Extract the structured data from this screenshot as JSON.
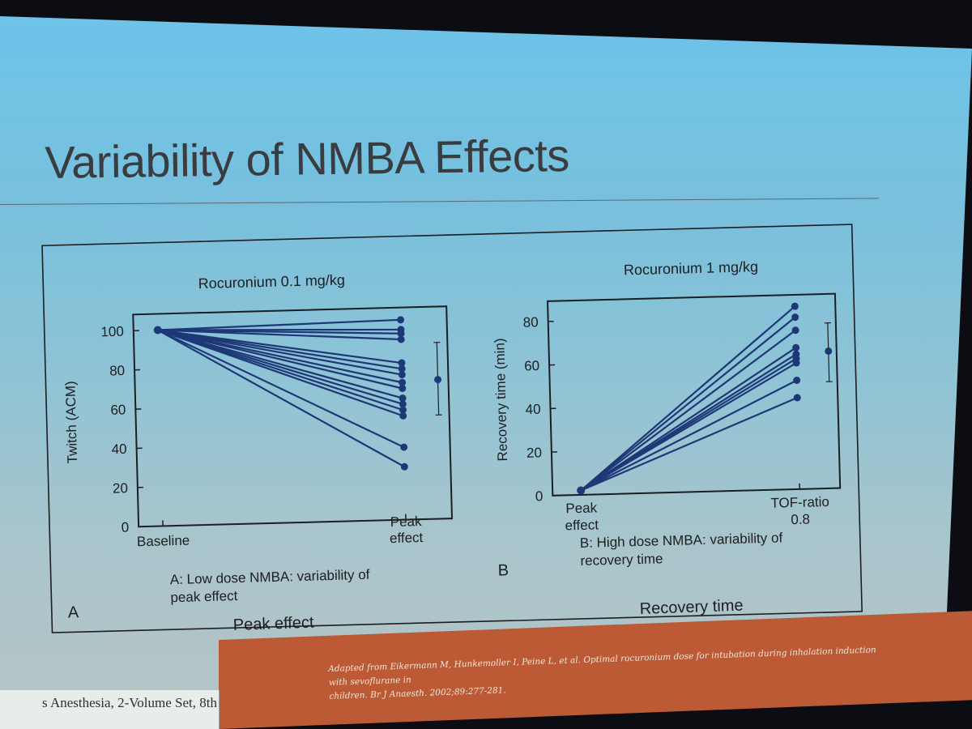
{
  "slide": {
    "title": "Variability of NMBA Effects",
    "caption_left": "Peak effect",
    "caption_right": "Recovery time",
    "footer_book": "s Anesthesia, 2-Volume Set, 8th",
    "footer_ref_line1": "Adapted from Eikermann M, Hunkemoller I,   Peine L, et al. Optimal rocuronium dose for intubation during inhalation induction with sevoflurane in",
    "footer_ref_line2": "children.  Br J Anaesth.   2002;89:277-281.",
    "colors": {
      "series": "#1e3877",
      "frame": "#1c1e22",
      "footer": "#bb5a34"
    }
  },
  "chart_data": [
    {
      "type": "line",
      "panel": "A",
      "title": "Rocuronium 0.1 mg/kg",
      "ylabel": "Twitch (ACM)",
      "ylim": [
        0,
        105
      ],
      "yticks": [
        "0",
        "20",
        "40",
        "60",
        "80",
        "100"
      ],
      "categories": [
        "Baseline",
        "Peak effect"
      ],
      "xlabel_lines": [
        [
          "Baseline"
        ],
        [
          "Peak",
          "effect"
        ]
      ],
      "caption_lines": [
        "A: Low dose NMBA: variability of",
        "peak effect"
      ],
      "baseline": 100,
      "peak_values": [
        102,
        97,
        95,
        92,
        80,
        77,
        74,
        70,
        67,
        62,
        59,
        56,
        53,
        37,
        27
      ],
      "summary": {
        "mean": 71,
        "low": 53,
        "high": 90
      }
    },
    {
      "type": "line",
      "panel": "B",
      "title": "Rocuronium 1 mg/kg",
      "ylabel": "Recovery time (min)",
      "ylim": [
        0,
        85
      ],
      "yticks": [
        "0",
        "20",
        "40",
        "60",
        "80"
      ],
      "categories": [
        "Peak effect",
        "TOF-ratio 0.8"
      ],
      "xlabel_lines": [
        [
          "Peak",
          "effect"
        ],
        [
          "TOF-ratio",
          "0.8"
        ]
      ],
      "caption_lines": [
        "B: High dose NMBA: variability of",
        "recovery time"
      ],
      "start": 2,
      "end_values": [
        84,
        79,
        73,
        65,
        62,
        60,
        58,
        50,
        42
      ],
      "summary": {
        "mean": 63,
        "low": 49,
        "high": 76
      }
    }
  ]
}
